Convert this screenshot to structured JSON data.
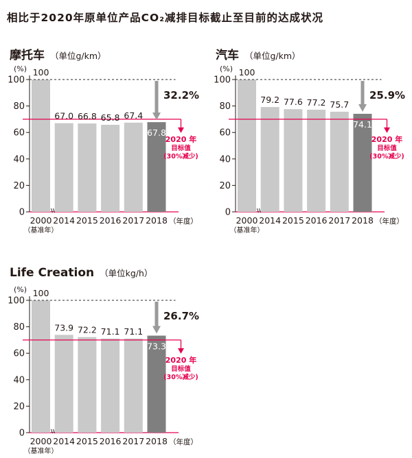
{
  "page": {
    "title": "相比于2020年原单位产品CO₂减排目标截止至目前的达成状况"
  },
  "colors": {
    "bar": "#c9c9c9",
    "bar_current": "#7f7f7f",
    "target_line": "#e5004f",
    "arrow": "#9a9a9a",
    "dashed": "#555555",
    "text": "#231815"
  },
  "chart_data": [
    {
      "type": "bar",
      "title": "摩托车",
      "unit": "（单位g/km）",
      "ylabel": "(%)",
      "xlabel": "（年度）",
      "ylim": [
        0,
        100
      ],
      "yticks": [
        0,
        20,
        40,
        60,
        80,
        100
      ],
      "categories": [
        "2000",
        "2014",
        "2015",
        "2016",
        "2017",
        "2018"
      ],
      "base_year_note": "（基准年）",
      "values": [
        100,
        67.0,
        66.8,
        65.8,
        67.4,
        67.8
      ],
      "value_labels": [
        "100",
        "67.0",
        "66.8",
        "65.8",
        "67.4",
        "67.8"
      ],
      "reduction": "32.2%",
      "target_value": 70,
      "target_label": [
        "2020 年",
        "目标值",
        "(30%减少)"
      ]
    },
    {
      "type": "bar",
      "title": "汽车",
      "unit": "（单位g/km）",
      "ylabel": "(%)",
      "xlabel": "（年度）",
      "ylim": [
        0,
        100
      ],
      "yticks": [
        0,
        20,
        40,
        60,
        80,
        100
      ],
      "categories": [
        "2000",
        "2014",
        "2015",
        "2016",
        "2017",
        "2018"
      ],
      "base_year_note": "（基准年）",
      "values": [
        100,
        79.2,
        77.6,
        77.2,
        75.7,
        74.1
      ],
      "value_labels": [
        "100",
        "79.2",
        "77.6",
        "77.2",
        "75.7",
        "74.1"
      ],
      "reduction": "25.9%",
      "target_value": 70,
      "target_label": [
        "2020 年",
        "目标值",
        "(30%减少)"
      ]
    },
    {
      "type": "bar",
      "title": "Life Creation",
      "unit": "（单位kg/h）",
      "ylabel": "(%)",
      "xlabel": "（年度）",
      "ylim": [
        0,
        100
      ],
      "yticks": [
        0,
        20,
        40,
        60,
        80,
        100
      ],
      "categories": [
        "2000",
        "2014",
        "2015",
        "2016",
        "2017",
        "2018"
      ],
      "base_year_note": "（基准年）",
      "values": [
        100,
        73.9,
        72.2,
        71.1,
        71.1,
        73.3
      ],
      "value_labels": [
        "100",
        "73.9",
        "72.2",
        "71.1",
        "71.1",
        "73.3"
      ],
      "reduction": "26.7%",
      "target_value": 70,
      "target_label": [
        "2020 年",
        "目标值",
        "(30%减少)"
      ]
    }
  ]
}
